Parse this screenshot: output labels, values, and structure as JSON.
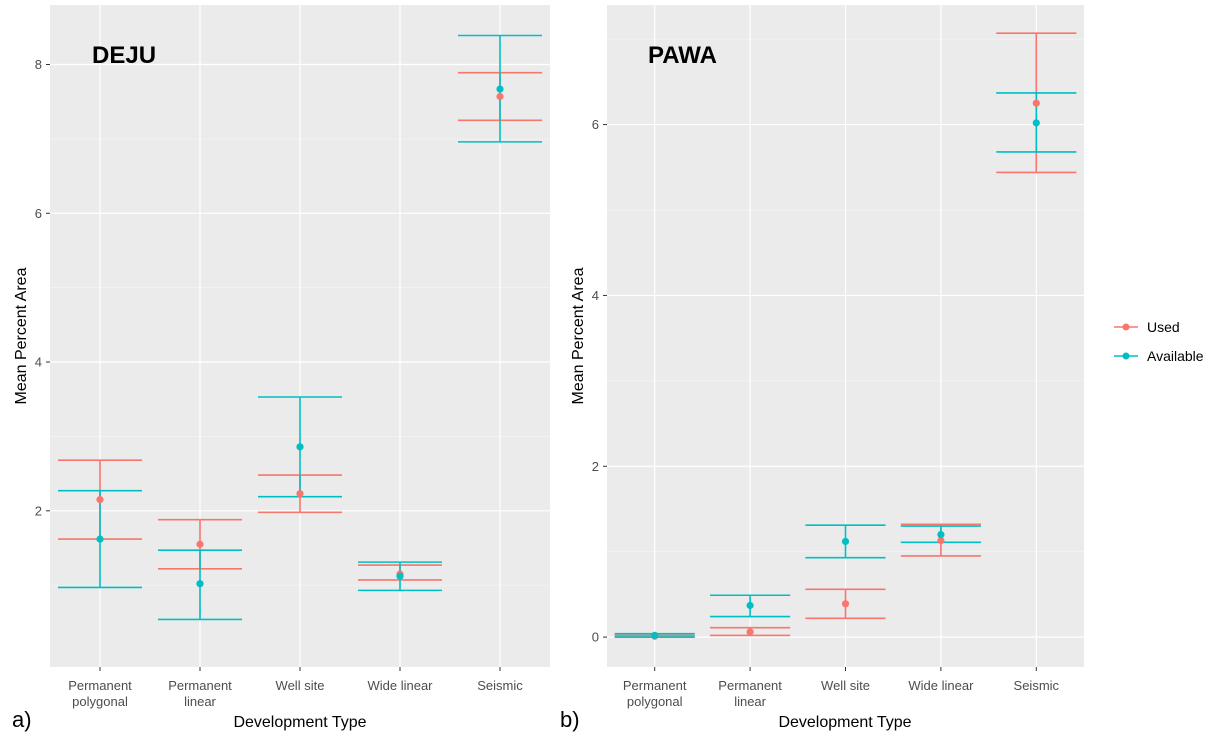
{
  "legend": {
    "entries": [
      {
        "label": "Used",
        "color": "#F8766D"
      },
      {
        "label": "Available",
        "color": "#00BFC4"
      }
    ]
  },
  "chart_data": [
    {
      "type": "scatter",
      "subtype": "point-with-error-bars",
      "title": "DEJU",
      "panel_label": "a)",
      "xlabel": "Development Type",
      "ylabel": "Mean Percent Area",
      "categories": [
        [
          "Permanent",
          "polygonal"
        ],
        [
          "Permanent",
          "linear"
        ],
        [
          "Well site"
        ],
        [
          "Wide linear"
        ],
        [
          "Seismic"
        ]
      ],
      "yticks": [
        2,
        4,
        6,
        8
      ],
      "ylim": [
        -0.1,
        8.8
      ],
      "grid": true,
      "series": [
        {
          "name": "Used",
          "color": "#F8766D",
          "values": [
            2.15,
            1.55,
            2.23,
            1.15,
            7.57
          ],
          "lower": [
            1.62,
            1.22,
            1.98,
            1.07,
            7.25
          ],
          "upper": [
            2.68,
            1.88,
            2.48,
            1.27,
            7.89
          ]
        },
        {
          "name": "Available",
          "color": "#00BFC4",
          "values": [
            1.62,
            1.02,
            2.86,
            1.12,
            7.67
          ],
          "lower": [
            0.97,
            0.54,
            2.19,
            0.93,
            6.96
          ],
          "upper": [
            2.27,
            1.47,
            3.53,
            1.31,
            8.39
          ]
        }
      ]
    },
    {
      "type": "scatter",
      "subtype": "point-with-error-bars",
      "title": "PAWA",
      "panel_label": "b)",
      "xlabel": "Development Type",
      "ylabel": "Mean Percent Area",
      "categories": [
        [
          "Permanent",
          "polygonal"
        ],
        [
          "Permanent",
          "linear"
        ],
        [
          "Well site"
        ],
        [
          "Wide linear"
        ],
        [
          "Seismic"
        ]
      ],
      "yticks": [
        0,
        2,
        4,
        6
      ],
      "ylim": [
        -0.35,
        7.4
      ],
      "grid": true,
      "series": [
        {
          "name": "Used",
          "color": "#F8766D",
          "values": [
            0.01,
            0.06,
            0.39,
            1.13,
            6.25
          ],
          "lower": [
            0.0,
            0.02,
            0.22,
            0.95,
            5.44
          ],
          "upper": [
            0.02,
            0.11,
            0.56,
            1.32,
            7.07
          ]
        },
        {
          "name": "Available",
          "color": "#00BFC4",
          "values": [
            0.02,
            0.37,
            1.12,
            1.2,
            6.02
          ],
          "lower": [
            0.0,
            0.24,
            0.93,
            1.11,
            5.68
          ],
          "upper": [
            0.04,
            0.49,
            1.31,
            1.3,
            6.37
          ]
        }
      ]
    }
  ]
}
